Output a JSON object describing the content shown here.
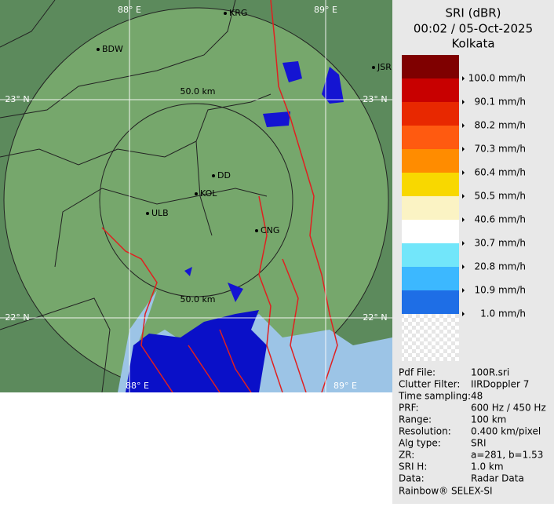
{
  "legend": {
    "title": "SRI (dBR)",
    "time": "00:02 / 05-Oct-2025",
    "site": "Kolkata",
    "colors": [
      "#7f0000",
      "#c80000",
      "#e82800",
      "#ff5a10",
      "#ff8c00",
      "#f8d800",
      "#fbf3c4",
      "#ffffff",
      "#72e6fa",
      "#3cb8ff",
      "#1e6ee6",
      "#0000c0"
    ],
    "labels": [
      "100.0 mm/h",
      "90.1 mm/h",
      "80.2 mm/h",
      "70.3 mm/h",
      "60.4 mm/h",
      "50.5 mm/h",
      "40.6 mm/h",
      "30.7 mm/h",
      "20.8 mm/h",
      "10.9 mm/h",
      "1.0 mm/h"
    ]
  },
  "info": {
    "rows": [
      [
        "Pdf File:",
        "100R.sri"
      ],
      [
        "Clutter Filter:",
        "IIRDoppler 7"
      ],
      [
        "Time sampling:",
        "48"
      ],
      [
        "PRF:",
        "600 Hz / 450 Hz"
      ],
      [
        "Range:",
        "100 km"
      ],
      [
        "Resolution:",
        "0.400 km/pixel"
      ],
      [
        "Alg type:",
        "SRI"
      ],
      [
        "ZR:",
        "a=281, b=1.53"
      ],
      [
        "SRI H:",
        "1.0 km"
      ],
      [
        "Data:",
        "Radar Data"
      ]
    ],
    "footer": "Rainbow® SELEX-SI"
  },
  "map": {
    "grid_labels": [
      "88° E",
      "89° E",
      "23° N",
      "23° N",
      "22° N",
      "22° N",
      "88° E",
      "89° E"
    ],
    "range_labels": [
      "50.0 km",
      "50.0 km"
    ],
    "cities": [
      "KRG",
      "BDW",
      "JSR",
      "DD",
      "KOL",
      "ULB",
      "CNG"
    ]
  }
}
